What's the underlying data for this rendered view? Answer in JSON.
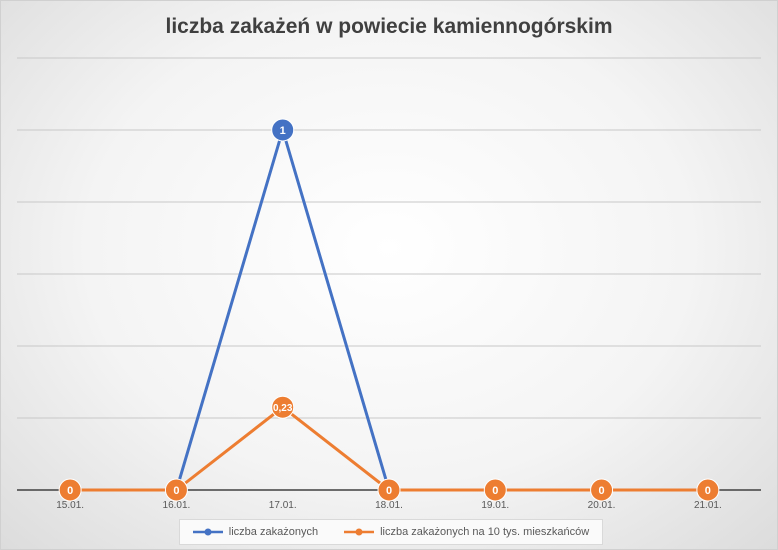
{
  "chart_data": {
    "type": "line",
    "title": "liczba zakażeń w powiecie kamiennogórskim",
    "categories": [
      "15.01.",
      "16.01.",
      "17.01.",
      "18.01.",
      "19.01.",
      "20.01.",
      "21.01."
    ],
    "ylim": [
      0,
      1.2
    ],
    "gridlines": [
      0.2,
      0.4,
      0.6,
      0.8,
      1.0,
      1.2
    ],
    "grid": true,
    "legend": "bottom",
    "series": [
      {
        "name": "liczba zakażonych",
        "color": "#4472C4",
        "values": [
          0,
          0,
          1,
          0,
          0,
          0,
          0
        ],
        "labels": [
          "",
          "",
          "1",
          "",
          "",
          "",
          ""
        ]
      },
      {
        "name": "liczba zakażonych na 10 tys. mieszkańców",
        "color": "#ED7D31",
        "values": [
          0,
          0,
          0.23,
          0,
          0,
          0,
          0
        ],
        "labels": [
          "0",
          "0",
          "0,23",
          "0",
          "0",
          "0",
          "0"
        ]
      }
    ]
  }
}
